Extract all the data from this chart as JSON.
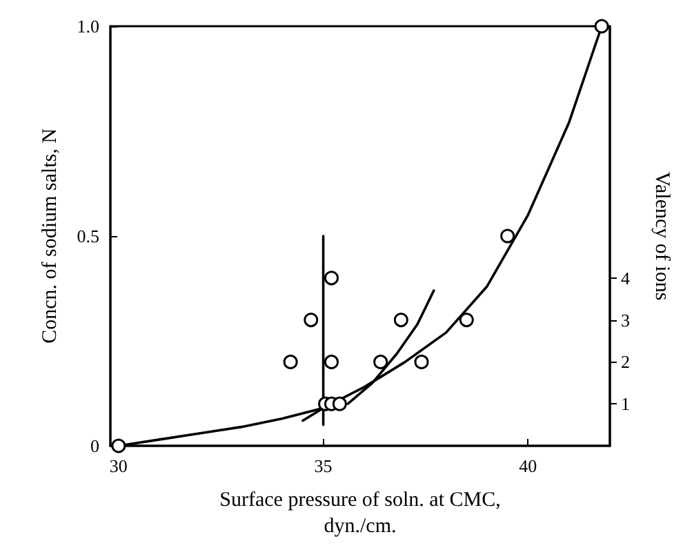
{
  "chart_data": {
    "type": "scatter",
    "xlabel": "Surface pressure of soln. at CMC,\ndyn./cm.",
    "ylabel": "Concn. of sodium salts, N",
    "y2label": "Valency of ions",
    "xlim": [
      29.8,
      42
    ],
    "xticks": [
      30,
      35,
      40
    ],
    "ylim": [
      0,
      1.0
    ],
    "yticks": [
      0,
      0.5,
      {
        "value": 1.0,
        "label": "1.0"
      }
    ],
    "y2lim": [
      0,
      10
    ],
    "y2ticks": [
      1,
      2,
      3,
      4
    ],
    "grid": false,
    "series": [
      {
        "type": "line",
        "color": "#000000",
        "marker": "none",
        "x": [
          30.0,
          31,
          32,
          33,
          34,
          35,
          36,
          37,
          38,
          39,
          40,
          41,
          41.8
        ],
        "values": [
          0,
          0.015,
          0.03,
          0.045,
          0.065,
          0.09,
          0.14,
          0.2,
          0.27,
          0.38,
          0.55,
          0.77,
          1.0
        ]
      },
      {
        "type": "line",
        "color": "#000000",
        "marker": "none",
        "x": [
          35.6,
          36.2,
          36.8,
          37.3,
          37.7
        ],
        "values": [
          0.1,
          0.15,
          0.22,
          0.29,
          0.37
        ]
      },
      {
        "type": "line",
        "color": "#000000",
        "marker": "none",
        "x": [
          35,
          35
        ],
        "values": [
          0.05,
          0.5
        ]
      },
      {
        "type": "line",
        "color": "#000000",
        "marker": "none",
        "x": [
          34.5,
          35.05
        ],
        "values": [
          0.06,
          0.093
        ]
      },
      {
        "color": "#000000",
        "marker": "circle",
        "x": [
          30.0,
          35.05,
          35.2,
          35.4,
          38.5,
          39.5,
          41.8
        ],
        "values": [
          0,
          0.1,
          0.1,
          0.1,
          0.3,
          0.5,
          1.0
        ]
      },
      {
        "color": "#000000",
        "marker": "circle",
        "axis": "y2",
        "x": [
          34.2,
          34.7,
          35.2,
          35.2,
          36.4,
          36.9,
          37.4
        ],
        "values": [
          2,
          3,
          2,
          4,
          2,
          3,
          2
        ]
      }
    ]
  }
}
